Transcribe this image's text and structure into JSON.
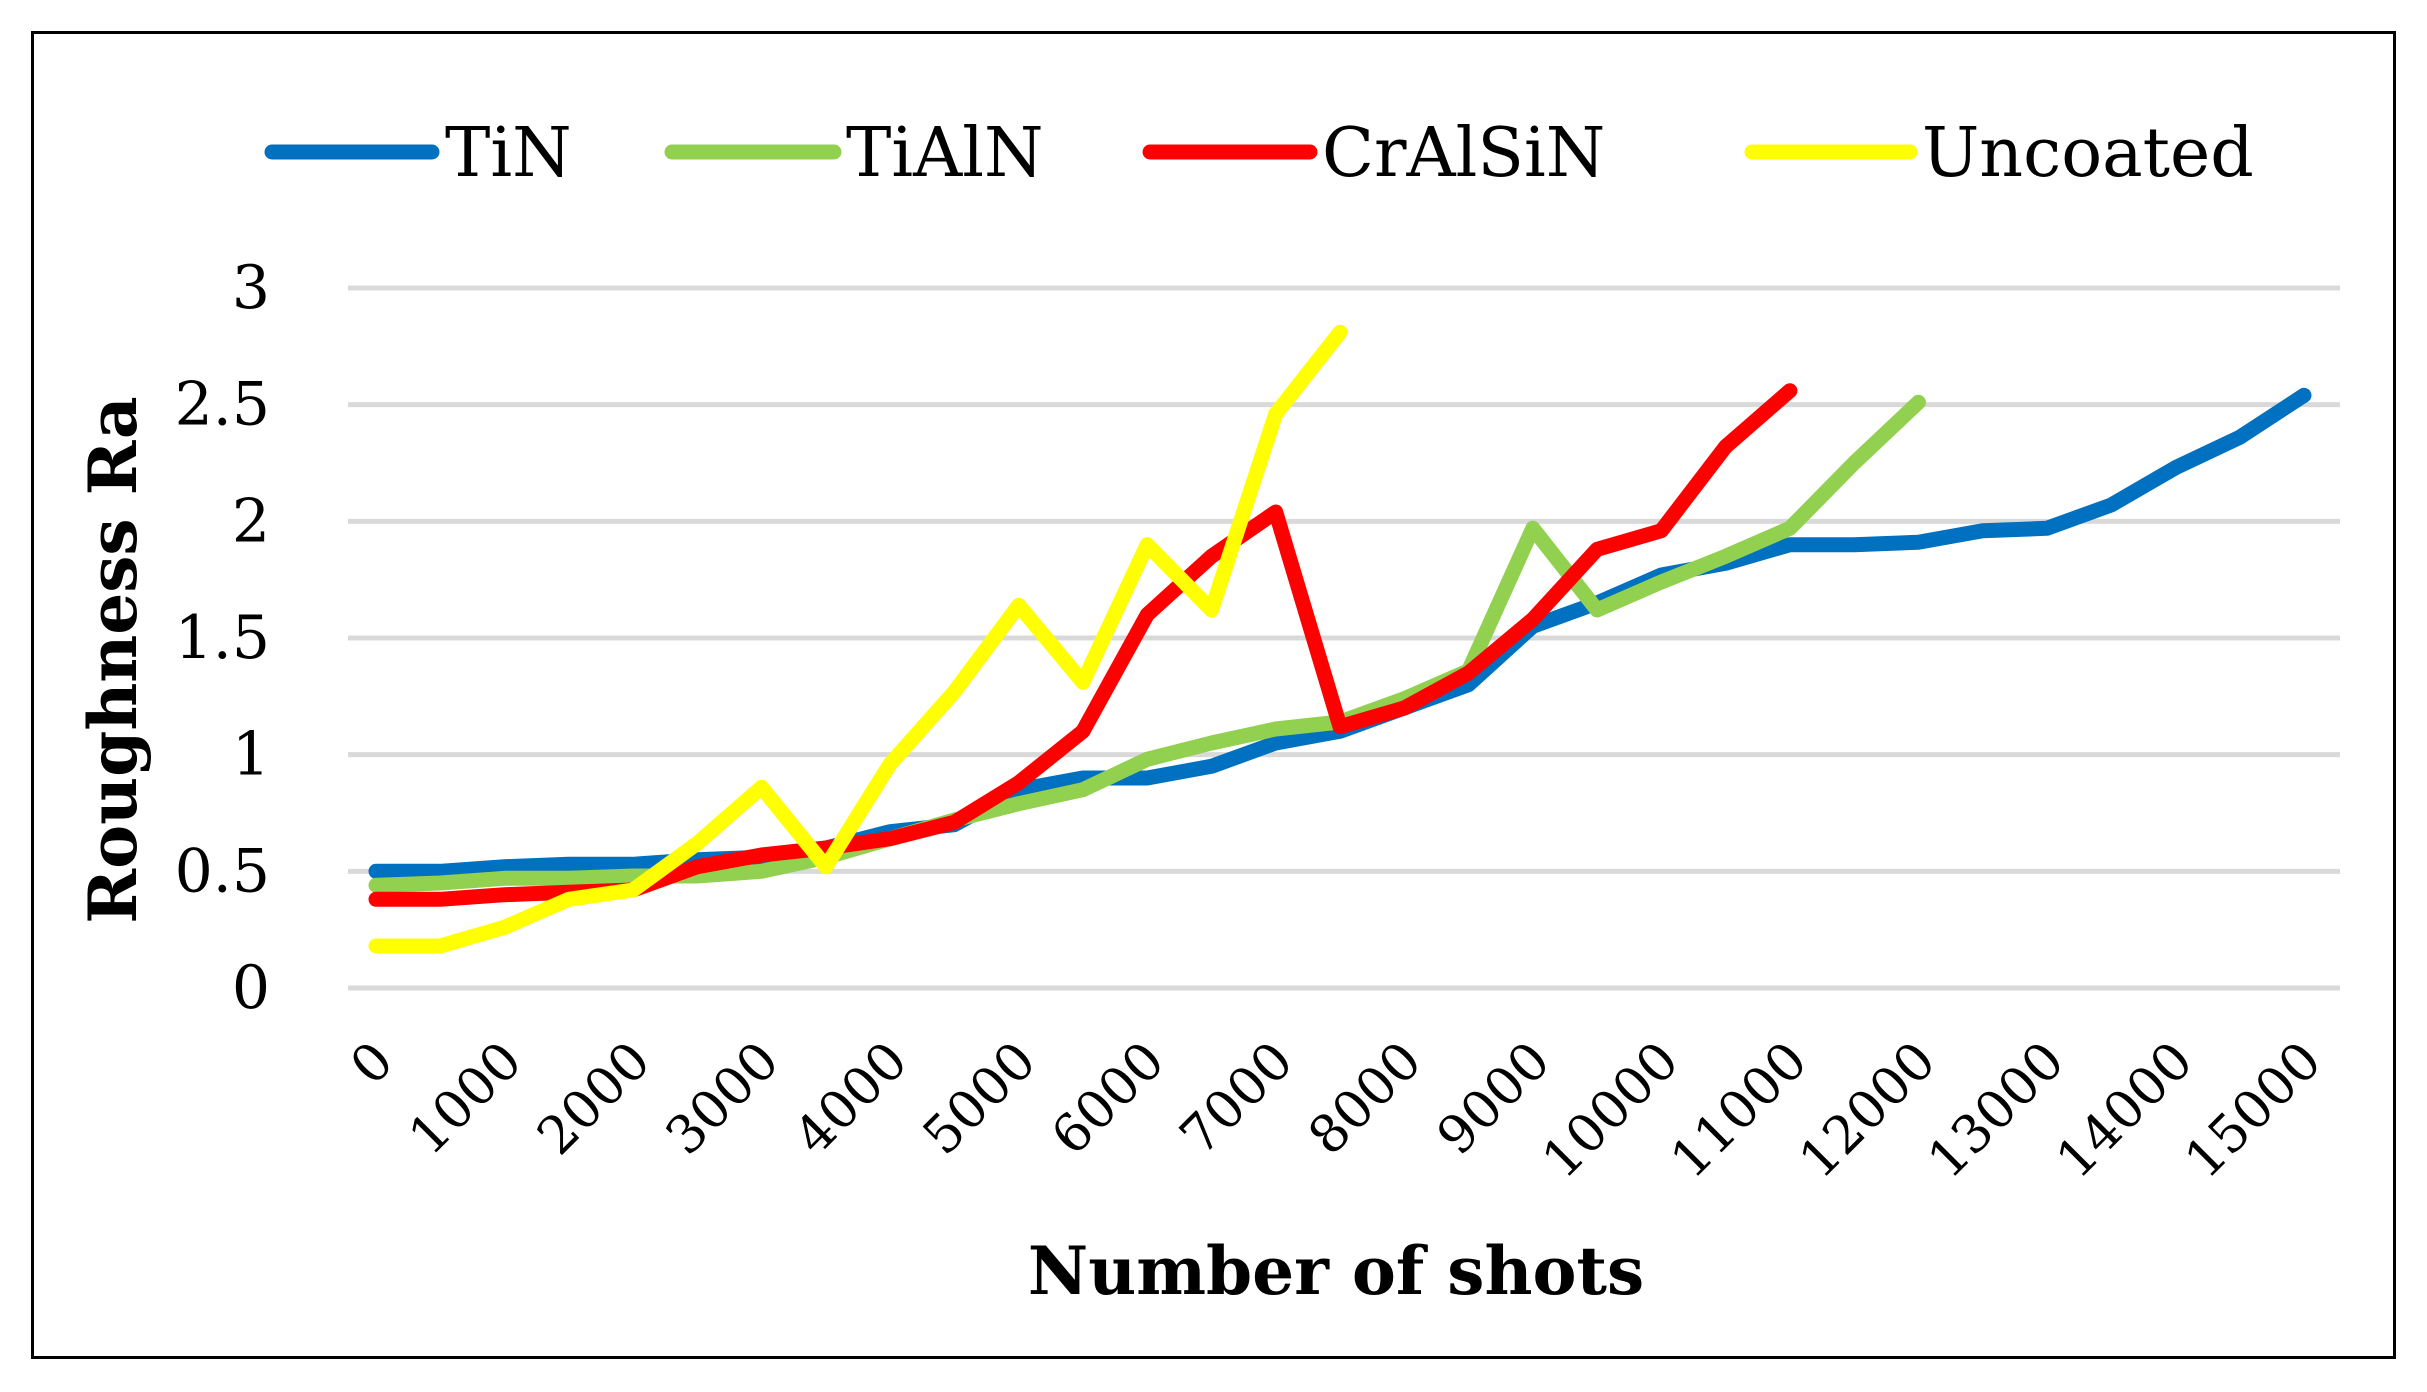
{
  "chart_data": {
    "type": "line",
    "xlabel": "Number of shots",
    "ylabel": "Roughness Ra",
    "ylim": [
      0,
      3
    ],
    "yticks": [
      "0",
      "0.5",
      "1",
      "1.5",
      "2",
      "2.5",
      "3"
    ],
    "categories": [
      "0",
      "1000",
      "2000",
      "3000",
      "4000",
      "5000",
      "6000",
      "7000",
      "8000",
      "9000",
      "10000",
      "11000",
      "12000",
      "13000",
      "14000",
      "15000"
    ],
    "grid": true,
    "legend_position": "top",
    "series": [
      {
        "name": "TiN",
        "color": "#0070c0",
        "x": [
          0,
          500,
          1000,
          1500,
          2000,
          2500,
          3000,
          3500,
          4000,
          4500,
          5000,
          5500,
          6000,
          6500,
          7000,
          7500,
          8000,
          8500,
          9000,
          9500,
          10000,
          10500,
          11000,
          11500,
          12000,
          12500,
          13000,
          13500,
          14000,
          14500,
          15000
        ],
        "values": [
          0.5,
          0.5,
          0.52,
          0.53,
          0.53,
          0.55,
          0.56,
          0.6,
          0.67,
          0.7,
          0.85,
          0.9,
          0.9,
          0.95,
          1.05,
          1.1,
          1.2,
          1.3,
          1.55,
          1.65,
          1.77,
          1.82,
          1.9,
          1.9,
          1.91,
          1.96,
          1.97,
          2.07,
          2.23,
          2.36,
          2.54
        ]
      },
      {
        "name": "TiAlN",
        "color": "#92d050",
        "x": [
          0,
          500,
          1000,
          1500,
          2000,
          2500,
          3000,
          3500,
          4000,
          4500,
          5000,
          5500,
          6000,
          6500,
          7000,
          7500,
          8000,
          8500,
          9000,
          9500,
          10000,
          10500,
          11000,
          11500,
          12000
        ],
        "values": [
          0.44,
          0.45,
          0.47,
          0.47,
          0.48,
          0.48,
          0.5,
          0.56,
          0.64,
          0.72,
          0.79,
          0.85,
          0.98,
          1.05,
          1.11,
          1.14,
          1.24,
          1.36,
          1.97,
          1.62,
          1.74,
          1.85,
          1.97,
          2.25,
          2.51
        ]
      },
      {
        "name": "CrAlSiN",
        "color": "#ff0000",
        "x": [
          0,
          500,
          1000,
          1500,
          2000,
          2500,
          3000,
          3500,
          4000,
          4500,
          5000,
          5500,
          6000,
          6500,
          7000,
          7500,
          8000,
          8500,
          9000,
          9500,
          10000,
          10500,
          11000
        ],
        "values": [
          0.38,
          0.38,
          0.4,
          0.41,
          0.42,
          0.52,
          0.57,
          0.6,
          0.64,
          0.71,
          0.88,
          1.1,
          1.6,
          1.85,
          2.04,
          1.12,
          1.2,
          1.35,
          1.58,
          1.88,
          1.96,
          2.32,
          2.56
        ]
      },
      {
        "name": "Uncoated",
        "color": "#ffff00",
        "x": [
          0,
          500,
          1000,
          1500,
          2000,
          2500,
          3000,
          3500,
          4000,
          4500,
          5000,
          5500,
          6000,
          6500,
          7000,
          7500
        ],
        "values": [
          0.18,
          0.18,
          0.26,
          0.38,
          0.42,
          0.62,
          0.86,
          0.52,
          0.96,
          1.27,
          1.64,
          1.31,
          1.9,
          1.62,
          2.46,
          2.81
        ]
      }
    ]
  }
}
